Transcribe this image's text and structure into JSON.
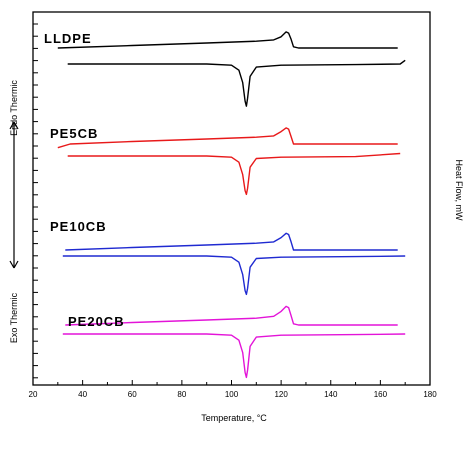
{
  "chart_data": {
    "type": "line",
    "title": "",
    "xlabel": "Temperature, °C",
    "ylabel": "Heat Flow, mW",
    "left_annotations": {
      "top": "Endo Thermic",
      "bottom": "Exo Thermic"
    },
    "xlim": [
      20,
      180
    ],
    "xticks": [
      20,
      40,
      60,
      80,
      100,
      120,
      140,
      160,
      180
    ],
    "grid": false,
    "series": [
      {
        "name": "LLDPE",
        "color": "#000000",
        "heating": {
          "x": [
            30,
            60,
            90,
            110,
            117,
            120,
            122,
            123,
            124,
            125,
            127,
            130,
            150,
            167
          ],
          "y": [
            0.0,
            0.04,
            0.08,
            0.11,
            0.13,
            0.18,
            0.26,
            0.24,
            0.14,
            0.02,
            0.0,
            0.0,
            0.0,
            0.0
          ]
        },
        "cooling": {
          "x": [
            34,
            60,
            90,
            100,
            103,
            104.5,
            105.5,
            106,
            106.5,
            107.5,
            110,
            120,
            150,
            168,
            170
          ],
          "y": [
            0.0,
            0.0,
            0.0,
            -0.02,
            -0.1,
            -0.3,
            -0.6,
            -0.68,
            -0.55,
            -0.2,
            -0.05,
            -0.02,
            -0.01,
            0.0,
            0.06
          ]
        }
      },
      {
        "name": "PE5CB",
        "color": "#e8191a",
        "heating": {
          "x": [
            30,
            35,
            60,
            90,
            110,
            117,
            120,
            122,
            123,
            124,
            125,
            128,
            150,
            167
          ],
          "y": [
            -0.06,
            0.0,
            0.04,
            0.08,
            0.11,
            0.13,
            0.2,
            0.26,
            0.24,
            0.12,
            0.0,
            0.0,
            0.0,
            0.0
          ]
        },
        "cooling": {
          "x": [
            34,
            60,
            90,
            100,
            103,
            104.5,
            105.5,
            106,
            106.5,
            107.5,
            110,
            120,
            150,
            168
          ],
          "y": [
            0.0,
            0.0,
            0.0,
            -0.02,
            -0.1,
            -0.3,
            -0.56,
            -0.62,
            -0.52,
            -0.18,
            -0.04,
            -0.02,
            -0.01,
            0.04
          ]
        }
      },
      {
        "name": "PE10CB",
        "color": "#1f2ad1",
        "heating": {
          "x": [
            33,
            60,
            90,
            110,
            117,
            120,
            122,
            123,
            124,
            125,
            127,
            150,
            167
          ],
          "y": [
            0.0,
            0.04,
            0.08,
            0.11,
            0.13,
            0.2,
            0.27,
            0.25,
            0.13,
            0.0,
            0.0,
            0.0,
            0.0
          ]
        },
        "cooling": {
          "x": [
            32,
            60,
            90,
            100,
            103,
            104.5,
            105.5,
            106,
            106.5,
            107.5,
            110,
            120,
            150,
            170
          ],
          "y": [
            0.0,
            0.0,
            0.0,
            -0.02,
            -0.1,
            -0.3,
            -0.56,
            -0.62,
            -0.52,
            -0.18,
            -0.04,
            -0.02,
            -0.01,
            0.0
          ]
        }
      },
      {
        "name": "PE20CB",
        "color": "#e314d8",
        "heating": {
          "x": [
            33,
            60,
            90,
            110,
            117,
            120,
            122,
            123,
            124,
            125,
            127,
            150,
            167
          ],
          "y": [
            0.0,
            0.04,
            0.08,
            0.11,
            0.14,
            0.22,
            0.3,
            0.28,
            0.15,
            0.02,
            0.0,
            0.0,
            0.0
          ]
        },
        "cooling": {
          "x": [
            32,
            60,
            90,
            100,
            103,
            104.5,
            105.5,
            106,
            106.5,
            107.5,
            110,
            120,
            150,
            170
          ],
          "y": [
            0.0,
            0.0,
            0.0,
            -0.02,
            -0.1,
            -0.3,
            -0.62,
            -0.7,
            -0.58,
            -0.2,
            -0.05,
            -0.02,
            -0.01,
            0.0
          ]
        }
      }
    ]
  }
}
